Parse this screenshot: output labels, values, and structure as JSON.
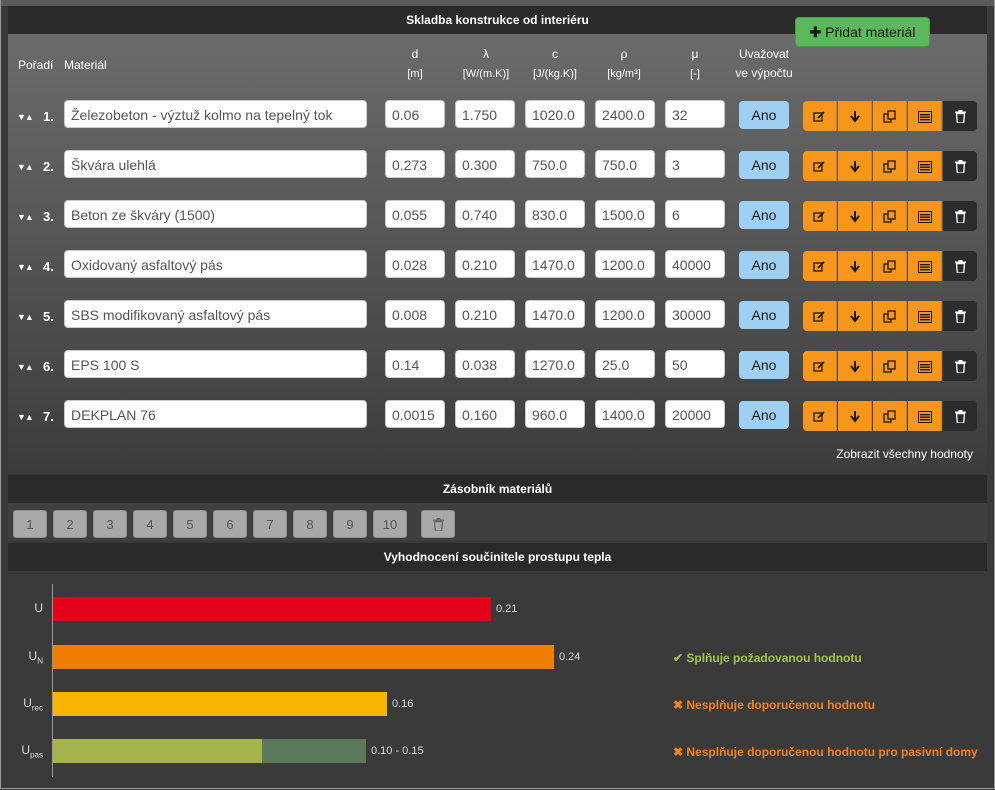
{
  "sections": {
    "composition": "Skladba konstrukce od interiéru",
    "stack": "Zásobník materiálů",
    "evaluation": "Vyhodnocení součinitele prostupu tepla"
  },
  "headers": {
    "order": "Pořadí",
    "material": "Materiál",
    "d": "d",
    "d_unit": "[m]",
    "lambda": "λ",
    "lambda_unit": "[W/(m.K)]",
    "c": "c",
    "c_unit": "[J/(kg.K)]",
    "rho": "ρ",
    "rho_unit": "[kg/m³]",
    "mu": "μ",
    "mu_unit": "[-]",
    "consider_1": "Uvažovat",
    "consider_2": "ve výpočtu"
  },
  "add_button": "Přidat materiál",
  "rows": [
    {
      "idx": "1.",
      "name": "Železobeton - výztuž kolmo na tepelný tok",
      "d": "0.06",
      "lambda": "1.750",
      "c": "1020.0",
      "rho": "2400.0",
      "mu": "32",
      "consider": "Ano"
    },
    {
      "idx": "2.",
      "name": "Škvára ulehlá",
      "d": "0.273",
      "lambda": "0.300",
      "c": "750.0",
      "rho": "750.0",
      "mu": "3",
      "consider": "Ano"
    },
    {
      "idx": "3.",
      "name": "Beton ze škváry (1500)",
      "d": "0.055",
      "lambda": "0.740",
      "c": "830.0",
      "rho": "1500.0",
      "mu": "6",
      "consider": "Ano"
    },
    {
      "idx": "4.",
      "name": "Oxidovaný asfaltový pás",
      "d": "0.028",
      "lambda": "0.210",
      "c": "1470.0",
      "rho": "1200.0",
      "mu": "40000",
      "consider": "Ano"
    },
    {
      "idx": "5.",
      "name": "SBS modifikovaný asfaltový pás",
      "d": "0.008",
      "lambda": "0.210",
      "c": "1470.0",
      "rho": "1200.0",
      "mu": "30000",
      "consider": "Ano"
    },
    {
      "idx": "6.",
      "name": "EPS 100 S",
      "d": "0.14",
      "lambda": "0.038",
      "c": "1270.0",
      "rho": "25.0",
      "mu": "50",
      "consider": "Ano"
    },
    {
      "idx": "7.",
      "name": "DEKPLAN 76",
      "d": "0.0015",
      "lambda": "0.160",
      "c": "960.0",
      "rho": "1400.0",
      "mu": "20000",
      "consider": "Ano"
    }
  ],
  "show_all": "Zobrazit všechny hodnoty",
  "stack_slots": [
    "1",
    "2",
    "3",
    "4",
    "5",
    "6",
    "7",
    "8",
    "9",
    "10"
  ],
  "colors": {
    "U": "#e2001a",
    "UN": "#ef7d00",
    "Urec": "#f7b500",
    "Upas_low": "#a6b54b",
    "Upas_high": "#5a7a5a"
  },
  "chart_data": {
    "type": "bar",
    "categories": [
      "U",
      "U_N",
      "U_rec",
      "U_pas"
    ],
    "values": [
      0.21,
      0.24,
      0.16,
      [
        0.1,
        0.15
      ]
    ],
    "value_labels": [
      "0.21",
      "0.24",
      "0.16",
      "0.10 - 0.15"
    ],
    "xlim": [
      0,
      0.25
    ]
  },
  "evaluation": {
    "labels": [
      {
        "main": "U",
        "sub": ""
      },
      {
        "main": "U",
        "sub": "N"
      },
      {
        "main": "U",
        "sub": "rec"
      },
      {
        "main": "U",
        "sub": "pas"
      }
    ],
    "value_labels": [
      "0.21",
      "0.24",
      "0.16",
      "0.10 - 0.15"
    ],
    "status_UN": "Splňuje požadovanou hodnotu",
    "status_Urec": "Nesplňuje doporučenou hodnotu",
    "status_Upas": "Nesplňuje doporučenou hodnotu pro pasivní domy"
  }
}
